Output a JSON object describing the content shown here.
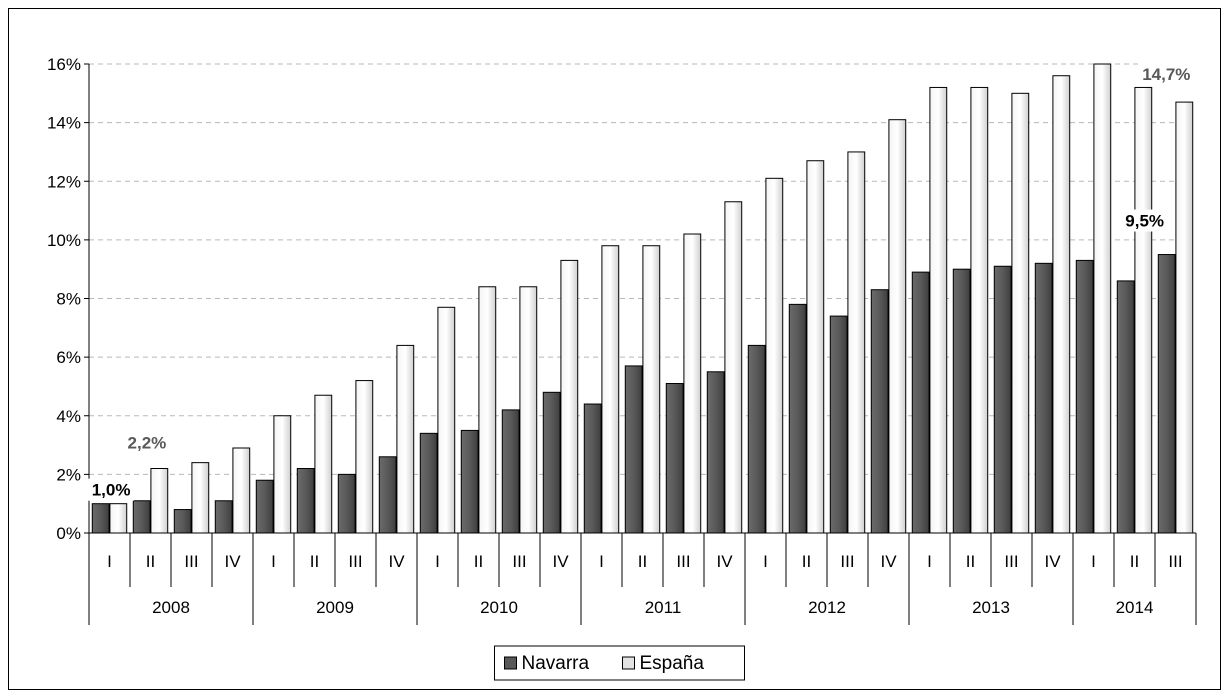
{
  "chart_data": {
    "type": "bar",
    "ylim": [
      0,
      16
    ],
    "y_ticks": [
      "0%",
      "2%",
      "4%",
      "6%",
      "8%",
      "10%",
      "12%",
      "14%",
      "16%"
    ],
    "grid": "horizontal dashed",
    "legend_position": "bottom-center",
    "categories": [
      "I",
      "II",
      "III",
      "IV",
      "I",
      "II",
      "III",
      "IV",
      "I",
      "II",
      "III",
      "IV",
      "I",
      "II",
      "III",
      "IV",
      "I",
      "II",
      "III",
      "IV",
      "I",
      "II",
      "III",
      "IV",
      "I",
      "II",
      "III"
    ],
    "years": [
      {
        "label": "2008",
        "quarters": 4
      },
      {
        "label": "2009",
        "quarters": 4
      },
      {
        "label": "2010",
        "quarters": 4
      },
      {
        "label": "2011",
        "quarters": 4
      },
      {
        "label": "2012",
        "quarters": 4
      },
      {
        "label": "2013",
        "quarters": 4
      },
      {
        "label": "2014",
        "quarters": 3
      }
    ],
    "series": [
      {
        "name": "Navarra",
        "color": "#595959",
        "values": [
          1.0,
          1.1,
          0.8,
          1.1,
          1.8,
          2.2,
          2.0,
          2.6,
          3.4,
          3.5,
          4.2,
          4.8,
          4.4,
          5.7,
          5.1,
          5.5,
          6.4,
          7.8,
          7.4,
          8.3,
          8.9,
          9.0,
          9.1,
          9.2,
          9.3,
          8.6,
          9.5
        ]
      },
      {
        "name": "España",
        "color": "#e3e3e3",
        "values": [
          1.0,
          2.2,
          2.4,
          2.9,
          4.0,
          4.7,
          5.2,
          6.4,
          7.7,
          8.4,
          8.4,
          9.3,
          9.8,
          9.8,
          10.2,
          11.3,
          12.1,
          12.7,
          13.0,
          14.1,
          15.2,
          15.2,
          15.0,
          15.6,
          16.0,
          15.2,
          14.7
        ]
      }
    ],
    "annotations": [
      {
        "series": 0,
        "index": 0,
        "text": "1,0%"
      },
      {
        "series": 1,
        "index": 1,
        "text": "2,2%"
      },
      {
        "series": 0,
        "index": 26,
        "text": "9,5%"
      },
      {
        "series": 1,
        "index": 26,
        "text": "14,7%"
      }
    ]
  }
}
